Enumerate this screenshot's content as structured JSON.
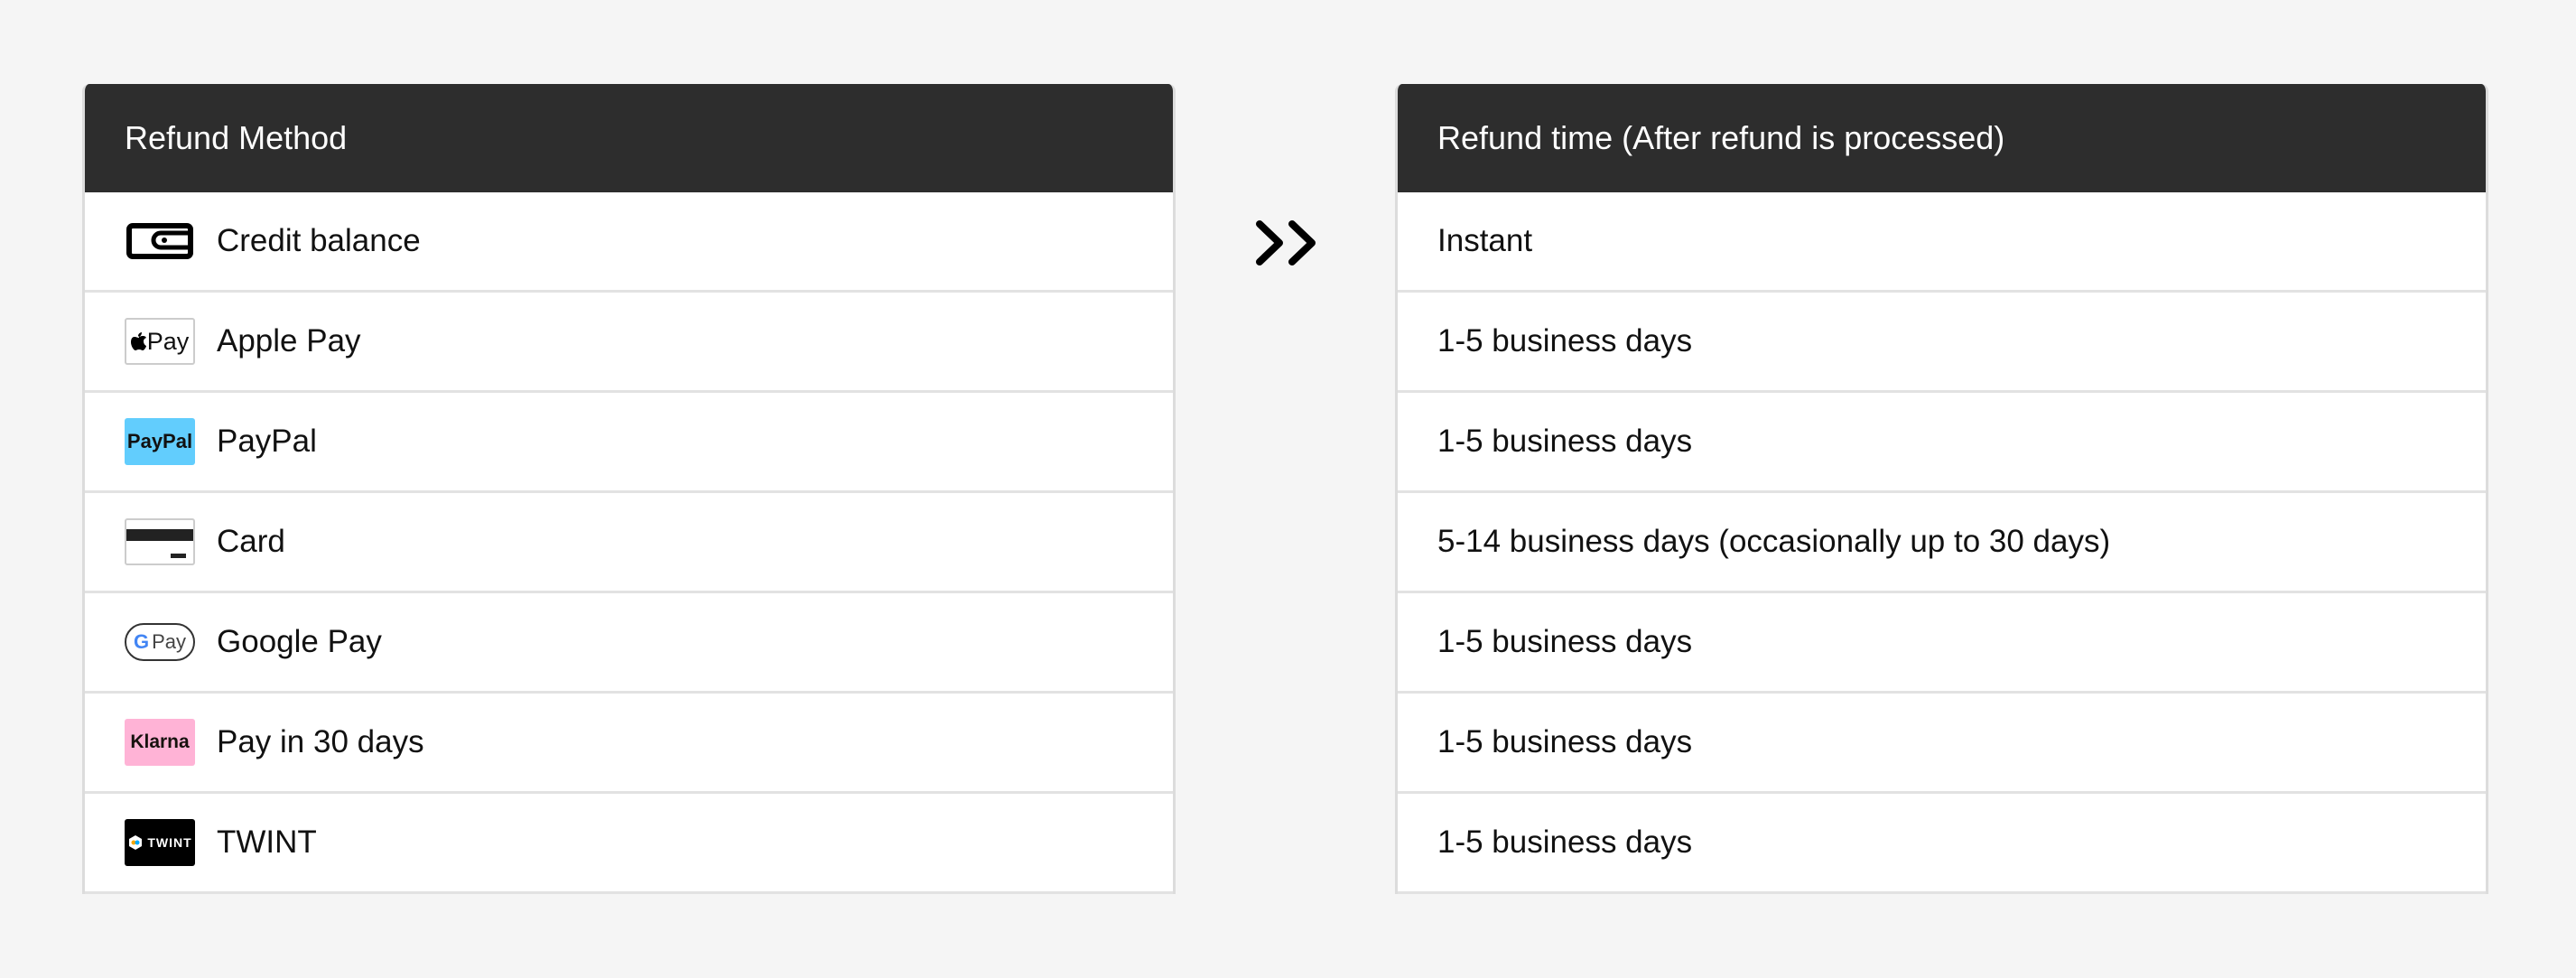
{
  "methods_table": {
    "header": "Refund Method",
    "rows": [
      {
        "label": "Credit balance",
        "icon": "wallet-icon"
      },
      {
        "label": "Apple Pay",
        "icon": "apple-pay-icon",
        "logo_text": "Pay"
      },
      {
        "label": "PayPal",
        "icon": "paypal-icon",
        "logo_text": "PayPal",
        "color": "#62cdfd"
      },
      {
        "label": "Card",
        "icon": "card-icon"
      },
      {
        "label": "Google Pay",
        "icon": "google-pay-icon",
        "logo_text": "Pay"
      },
      {
        "label": "Pay in 30 days",
        "icon": "klarna-icon",
        "logo_text": "Klarna",
        "color": "#ffb3d6"
      },
      {
        "label": "TWINT",
        "icon": "twint-icon",
        "logo_text": "TWINT",
        "color": "#000000"
      }
    ]
  },
  "arrow": {
    "icon": "double-chevron-right-icon"
  },
  "times_table": {
    "header": "Refund time (After refund is processed)",
    "rows": [
      "Instant",
      "1-5 business days",
      "1-5 business days",
      "5-14 business days (occasionally up to 30 days)",
      "1-5 business days",
      "1-5 business days",
      "1-5 business days"
    ]
  }
}
